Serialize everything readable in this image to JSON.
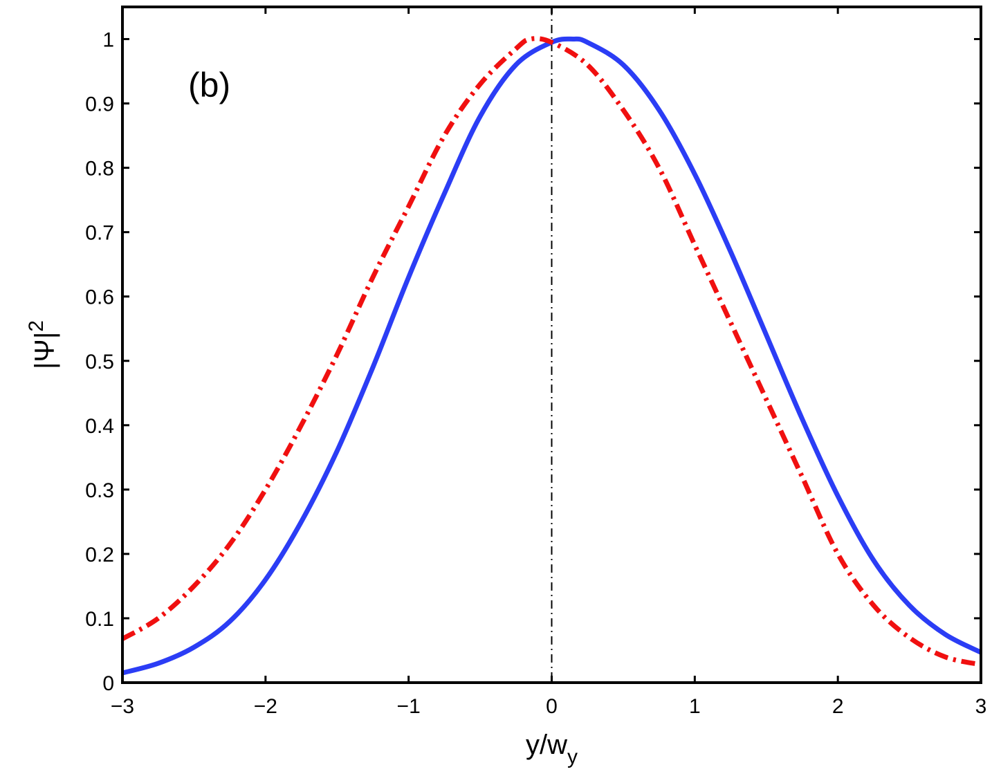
{
  "chart_data": {
    "type": "line",
    "panel_label": "(b)",
    "xlabel": {
      "main": "y/w",
      "sub": "y"
    },
    "ylabel": {
      "main": "|Ψ|",
      "sup": "2"
    },
    "xlim": [
      -3,
      3
    ],
    "ylim": [
      0,
      1.05
    ],
    "x_ticks": [
      -3,
      -2,
      -1,
      0,
      1,
      2,
      3
    ],
    "x_tick_labels": [
      "−3",
      "−2",
      "−1",
      "0",
      "1",
      "2",
      "3"
    ],
    "y_ticks": [
      0,
      0.1,
      0.2,
      0.3,
      0.4,
      0.5,
      0.6,
      0.7,
      0.8,
      0.9,
      1
    ],
    "y_tick_labels": [
      "0",
      "0.1",
      "0.2",
      "0.3",
      "0.4",
      "0.5",
      "0.6",
      "0.7",
      "0.8",
      "0.9",
      "1"
    ],
    "grid": false,
    "vertical_reference_line": {
      "x": 0,
      "style": "dash-dot",
      "color": "#000000"
    },
    "series": [
      {
        "style": "solid",
        "color": "#2b3df5",
        "x": [
          -3.0,
          -2.75,
          -2.5,
          -2.25,
          -2.0,
          -1.75,
          -1.5,
          -1.25,
          -1.0,
          -0.75,
          -0.5,
          -0.25,
          0.0,
          0.15,
          0.25,
          0.5,
          0.75,
          1.0,
          1.25,
          1.5,
          1.75,
          2.0,
          2.25,
          2.5,
          2.75,
          3.0
        ],
        "y": [
          0.015,
          0.03,
          0.055,
          0.095,
          0.16,
          0.25,
          0.36,
          0.49,
          0.63,
          0.76,
          0.88,
          0.96,
          0.995,
          1.0,
          0.995,
          0.96,
          0.89,
          0.79,
          0.67,
          0.54,
          0.41,
          0.29,
          0.19,
          0.12,
          0.075,
          0.047
        ]
      },
      {
        "style": "dash-dot",
        "color": "#f01010",
        "x": [
          -3.0,
          -2.75,
          -2.5,
          -2.25,
          -2.0,
          -1.75,
          -1.5,
          -1.25,
          -1.0,
          -0.75,
          -0.5,
          -0.25,
          -0.15,
          0.0,
          0.25,
          0.5,
          0.75,
          1.0,
          1.25,
          1.5,
          1.75,
          2.0,
          2.25,
          2.5,
          2.75,
          3.0
        ],
        "y": [
          0.068,
          0.1,
          0.15,
          0.215,
          0.3,
          0.4,
          0.51,
          0.63,
          0.74,
          0.85,
          0.93,
          0.985,
          1.0,
          0.995,
          0.96,
          0.89,
          0.8,
          0.68,
          0.56,
          0.44,
          0.32,
          0.2,
          0.12,
          0.07,
          0.04,
          0.028
        ]
      }
    ]
  }
}
